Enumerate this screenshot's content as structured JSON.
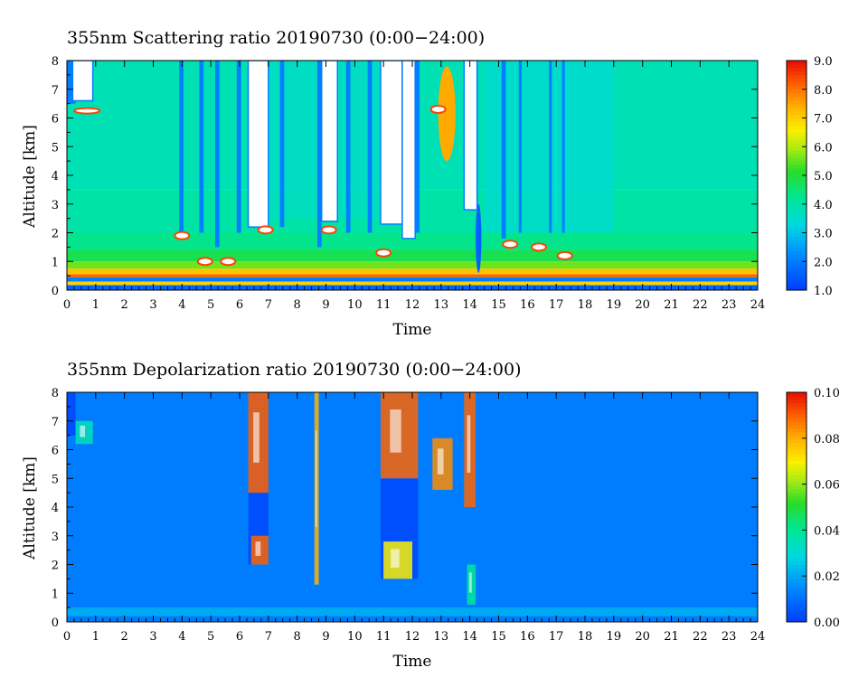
{
  "chart_data": [
    {
      "type": "heatmap",
      "title": "355nm Scattering ratio  20190730 (0:00−24:00)",
      "xlabel": "Time",
      "ylabel": "Altitude [km]",
      "xlim": [
        0,
        24
      ],
      "ylim": [
        0,
        8
      ],
      "x_ticks": [
        "0",
        "1",
        "2",
        "3",
        "4",
        "5",
        "6",
        "7",
        "8",
        "9",
        "10",
        "11",
        "12",
        "13",
        "14",
        "15",
        "16",
        "17",
        "18",
        "19",
        "20",
        "21",
        "22",
        "23",
        "24"
      ],
      "y_ticks": [
        "0",
        "1",
        "2",
        "3",
        "4",
        "5",
        "6",
        "7",
        "8"
      ],
      "colorbar": {
        "min": 1.0,
        "max": 9.0,
        "ticks": [
          "1.0",
          "2.0",
          "3.0",
          "4.0",
          "5.0",
          "6.0",
          "7.0",
          "8.0",
          "9.0"
        ]
      },
      "background_value": 3.8,
      "saturated_blocks": [
        {
          "x": [
            0.2,
            0.9
          ],
          "y": [
            6.6,
            8.0
          ]
        },
        {
          "x": [
            6.3,
            7.0
          ],
          "y": [
            2.2,
            8.0
          ]
        },
        {
          "x": [
            8.85,
            9.4
          ],
          "y": [
            2.4,
            8.0
          ]
        },
        {
          "x": [
            10.9,
            11.65
          ],
          "y": [
            2.3,
            8.0
          ]
        },
        {
          "x": [
            11.65,
            12.1
          ],
          "y": [
            1.8,
            8.0
          ]
        },
        {
          "x": [
            13.8,
            14.25
          ],
          "y": [
            2.8,
            8.0
          ]
        }
      ],
      "low_value_strips": [
        {
          "x": [
            0.0,
            0.3
          ],
          "y": [
            6.5,
            8.0
          ]
        },
        {
          "x": [
            3.9,
            4.05
          ],
          "y": [
            2.0,
            8.0
          ]
        },
        {
          "x": [
            4.6,
            4.75
          ],
          "y": [
            2.0,
            8.0
          ]
        },
        {
          "x": [
            5.15,
            5.3
          ],
          "y": [
            1.5,
            8.0
          ]
        },
        {
          "x": [
            5.9,
            6.05
          ],
          "y": [
            2.0,
            8.0
          ]
        },
        {
          "x": [
            7.4,
            7.55
          ],
          "y": [
            2.2,
            8.0
          ]
        },
        {
          "x": [
            8.7,
            8.85
          ],
          "y": [
            1.5,
            8.0
          ]
        },
        {
          "x": [
            9.7,
            9.85
          ],
          "y": [
            2.0,
            8.0
          ]
        },
        {
          "x": [
            10.45,
            10.6
          ],
          "y": [
            2.0,
            8.0
          ]
        },
        {
          "x": [
            12.1,
            12.25
          ],
          "y": [
            2.0,
            8.0
          ]
        },
        {
          "x": [
            15.1,
            15.25
          ],
          "y": [
            1.8,
            8.0
          ]
        },
        {
          "x": [
            15.7,
            15.8
          ],
          "y": [
            2.0,
            8.0
          ]
        },
        {
          "x": [
            16.75,
            16.85
          ],
          "y": [
            2.0,
            8.0
          ]
        },
        {
          "x": [
            17.2,
            17.3
          ],
          "y": [
            2.0,
            8.0
          ]
        }
      ],
      "cloud_features": [
        {
          "x": [
            12.9,
            13.5
          ],
          "y": [
            4.5,
            7.8
          ],
          "value": 7.5
        },
        {
          "x": [
            14.2,
            14.4
          ],
          "y": [
            0.6,
            3.0
          ],
          "value": 1.5
        }
      ],
      "boundary_layer": {
        "y": [
          0.4,
          1.0
        ],
        "peak_value": 8.0
      }
    },
    {
      "type": "heatmap",
      "title": "355nm Depolarization ratio  20190730 (0:00−24:00)",
      "xlabel": "Time",
      "ylabel": "Altitude [km]",
      "xlim": [
        0,
        24
      ],
      "ylim": [
        0,
        8
      ],
      "x_ticks": [
        "0",
        "1",
        "2",
        "3",
        "4",
        "5",
        "6",
        "7",
        "8",
        "9",
        "10",
        "11",
        "12",
        "13",
        "14",
        "15",
        "16",
        "17",
        "18",
        "19",
        "20",
        "21",
        "22",
        "23",
        "24"
      ],
      "y_ticks": [
        "0",
        "1",
        "2",
        "3",
        "4",
        "5",
        "6",
        "7",
        "8"
      ],
      "colorbar": {
        "min": 0.0,
        "max": 0.1,
        "ticks": [
          "0.00",
          "0.02",
          "0.04",
          "0.06",
          "0.08",
          "0.10"
        ]
      },
      "background_value": 0.012,
      "high_value_regions": [
        {
          "x": [
            0.3,
            0.9
          ],
          "y": [
            6.2,
            7.0
          ],
          "value": 0.035
        },
        {
          "x": [
            6.3,
            7.0
          ],
          "y": [
            4.5,
            8.0
          ],
          "value": 0.09
        },
        {
          "x": [
            6.4,
            7.0
          ],
          "y": [
            2.0,
            3.0
          ],
          "value": 0.09
        },
        {
          "x": [
            8.6,
            8.75
          ],
          "y": [
            1.3,
            8.0
          ],
          "value": 0.08
        },
        {
          "x": [
            10.9,
            12.2
          ],
          "y": [
            5.0,
            8.0
          ],
          "value": 0.09
        },
        {
          "x": [
            11.0,
            12.0
          ],
          "y": [
            1.5,
            2.8
          ],
          "value": 0.07
        },
        {
          "x": [
            12.7,
            13.4
          ],
          "y": [
            4.6,
            6.4
          ],
          "value": 0.085
        },
        {
          "x": [
            13.8,
            14.2
          ],
          "y": [
            4.0,
            8.0
          ],
          "value": 0.09
        },
        {
          "x": [
            13.9,
            14.2
          ],
          "y": [
            0.6,
            2.0
          ],
          "value": 0.04
        }
      ]
    }
  ]
}
